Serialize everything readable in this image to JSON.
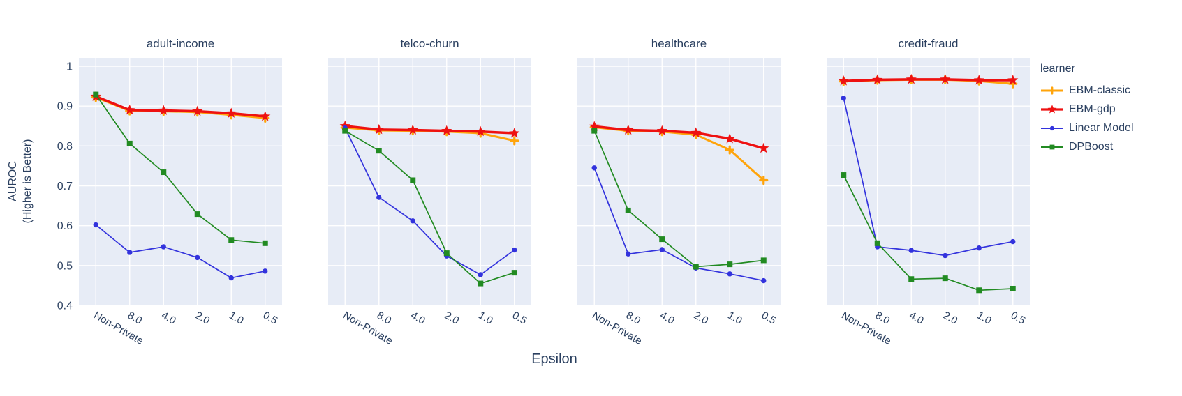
{
  "figure": {
    "x_axis_title": "Epsilon",
    "y_axis_title_line1": "AUROC",
    "y_axis_title_line2": "(Higher is Better)",
    "legend": {
      "title": "learner"
    }
  },
  "chart_data": {
    "type": "line",
    "xlabel": "Epsilon",
    "ylabel": "AUROC (Higher is Better)",
    "legend_title": "learner",
    "legend_position": "right",
    "grid": true,
    "categories": [
      "Non-Private",
      "8.0",
      "4.0",
      "2.0",
      "1.0",
      "0.5"
    ],
    "y_ticks": [
      "1",
      "0.9",
      "0.8",
      "0.7",
      "0.6",
      "0.5",
      "0.4"
    ],
    "ylim": [
      0.4,
      1.02
    ],
    "colors": {
      "plot_background": "#E7ECF6",
      "grid": "#FFFFFF",
      "text": "#2A3F5F"
    },
    "series_meta": [
      {
        "name": "EBM-classic",
        "color": "#FFA40B",
        "marker": "plus"
      },
      {
        "name": "EBM-gdp",
        "color": "#EE1111",
        "marker": "star"
      },
      {
        "name": "Linear Model",
        "color": "#3333DD",
        "marker": "circle"
      },
      {
        "name": "DPBoost",
        "color": "#228B22",
        "marker": "square"
      }
    ],
    "facets": [
      {
        "title": "adult-income",
        "series": [
          {
            "name": "EBM-classic",
            "values": [
              0.922,
              0.888,
              0.887,
              0.885,
              0.878,
              0.87
            ]
          },
          {
            "name": "EBM-gdp",
            "values": [
              0.924,
              0.89,
              0.889,
              0.887,
              0.882,
              0.874
            ]
          },
          {
            "name": "Linear Model",
            "values": [
              0.602,
              0.533,
              0.547,
              0.52,
              0.469,
              0.486
            ]
          },
          {
            "name": "DPBoost",
            "values": [
              0.929,
              0.806,
              0.734,
              0.629,
              0.564,
              0.556
            ]
          }
        ]
      },
      {
        "title": "telco-churn",
        "series": [
          {
            "name": "EBM-classic",
            "values": [
              0.846,
              0.839,
              0.838,
              0.836,
              0.832,
              0.813
            ]
          },
          {
            "name": "EBM-gdp",
            "values": [
              0.85,
              0.841,
              0.84,
              0.838,
              0.836,
              0.832
            ]
          },
          {
            "name": "Linear Model",
            "values": [
              0.845,
              0.671,
              0.612,
              0.524,
              0.477,
              0.539
            ]
          },
          {
            "name": "DPBoost",
            "values": [
              0.838,
              0.788,
              0.714,
              0.531,
              0.455,
              0.482
            ]
          }
        ]
      },
      {
        "title": "healthcare",
        "series": [
          {
            "name": "EBM-classic",
            "values": [
              0.847,
              0.838,
              0.836,
              0.828,
              0.79,
              0.714
            ]
          },
          {
            "name": "EBM-gdp",
            "values": [
              0.849,
              0.84,
              0.838,
              0.833,
              0.818,
              0.794
            ]
          },
          {
            "name": "Linear Model",
            "values": [
              0.745,
              0.529,
              0.54,
              0.494,
              0.479,
              0.462
            ]
          },
          {
            "name": "DPBoost",
            "values": [
              0.838,
              0.638,
              0.566,
              0.497,
              0.503,
              0.513
            ]
          }
        ]
      },
      {
        "title": "credit-fraud",
        "series": [
          {
            "name": "EBM-classic",
            "values": [
              0.962,
              0.965,
              0.966,
              0.966,
              0.963,
              0.956
            ]
          },
          {
            "name": "EBM-gdp",
            "values": [
              0.963,
              0.966,
              0.967,
              0.967,
              0.965,
              0.965
            ]
          },
          {
            "name": "Linear Model",
            "values": [
              0.92,
              0.547,
              0.538,
              0.525,
              0.544,
              0.56
            ]
          },
          {
            "name": "DPBoost",
            "values": [
              0.727,
              0.556,
              0.466,
              0.468,
              0.438,
              0.442
            ]
          }
        ]
      }
    ]
  }
}
